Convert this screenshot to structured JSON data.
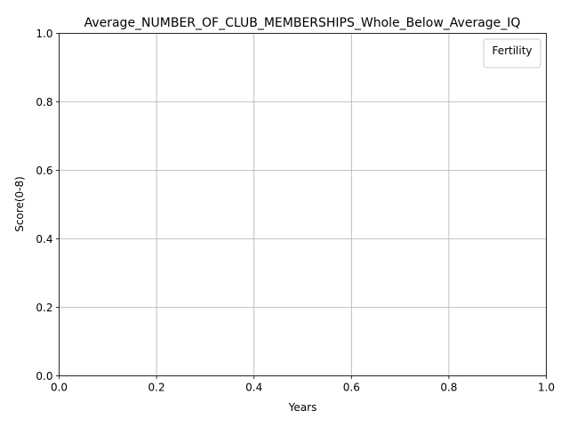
{
  "chart_data": {
    "type": "line",
    "title": "Average_NUMBER_OF_CLUB_MEMBERSHIPS_Whole_Below_Average_IQ",
    "xlabel": "Years",
    "ylabel": "Score(0-8)",
    "xlim": [
      0,
      1
    ],
    "ylim": [
      0,
      1
    ],
    "x_ticks": [
      "0.0",
      "0.2",
      "0.4",
      "0.6",
      "0.8",
      "1.0"
    ],
    "y_ticks": [
      "0.0",
      "0.2",
      "0.4",
      "0.6",
      "0.8",
      "1.0"
    ],
    "grid": true,
    "legend": {
      "title": "Fertility",
      "placement": "top-right",
      "entries": []
    },
    "series": []
  }
}
